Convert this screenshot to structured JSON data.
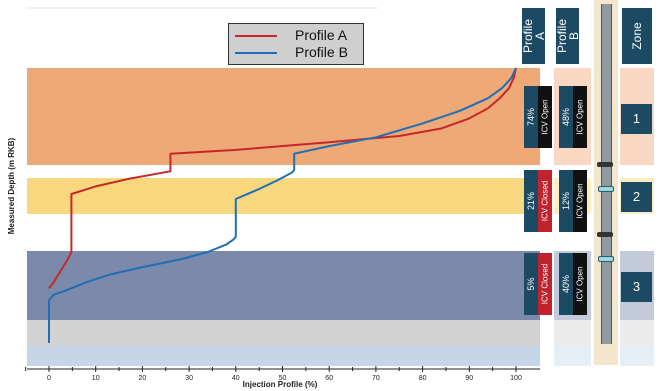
{
  "chart_data": {
    "type": "line",
    "title": "",
    "xlabel": "Injection Profile (%)",
    "ylabel": "Measured Depth (m RKB)",
    "xlim": [
      0,
      100
    ],
    "ylim": [
      100,
      0
    ],
    "grid": false,
    "legend_position": "top-center",
    "x_ticks": [
      "0",
      "10",
      "20",
      "30",
      "40",
      "50",
      "60",
      "70",
      "80",
      "90",
      "100"
    ],
    "series": [
      {
        "name": "Profile A",
        "color": "#c62828",
        "points": [
          [
            0,
            87.5
          ],
          [
            1,
            85
          ],
          [
            2,
            82
          ],
          [
            3,
            79
          ],
          [
            4,
            76
          ],
          [
            4.8,
            73
          ],
          [
            4.8,
            50
          ],
          [
            10,
            47
          ],
          [
            17,
            44
          ],
          [
            23,
            42
          ],
          [
            26,
            41
          ],
          [
            26,
            34
          ],
          [
            40,
            32.5
          ],
          [
            60,
            29.5
          ],
          [
            75,
            27
          ],
          [
            84,
            24
          ],
          [
            90,
            20
          ],
          [
            94,
            16
          ],
          [
            96.5,
            12
          ],
          [
            98.5,
            8
          ],
          [
            99.5,
            4
          ],
          [
            100,
            0
          ]
        ]
      },
      {
        "name": "Profile B",
        "color": "#1e6fb5",
        "points": [
          [
            0,
            92
          ],
          [
            1,
            90
          ],
          [
            4,
            88
          ],
          [
            8,
            85
          ],
          [
            13,
            82
          ],
          [
            20,
            79
          ],
          [
            28,
            76
          ],
          [
            34,
            73
          ],
          [
            38,
            70
          ],
          [
            39.5,
            68
          ],
          [
            40,
            67
          ],
          [
            40,
            52
          ],
          [
            45,
            48
          ],
          [
            49,
            44.5
          ],
          [
            52,
            41.5
          ],
          [
            52.5,
            40.5
          ],
          [
            52.5,
            34
          ],
          [
            60,
            31
          ],
          [
            70,
            27.5
          ],
          [
            80,
            22
          ],
          [
            88,
            17
          ],
          [
            94,
            12
          ],
          [
            97,
            8
          ],
          [
            99,
            4
          ],
          [
            100,
            0
          ]
        ]
      }
    ]
  },
  "legend": {
    "items": [
      {
        "label": "Profile A",
        "color": "#c62828"
      },
      {
        "label": "Profile B",
        "color": "#1e6fb5"
      }
    ]
  },
  "zones": [
    {
      "number": "1",
      "profile_a_pct": "74%",
      "profile_a_icv": "ICV Open",
      "profile_b_pct": "48%",
      "profile_b_icv": "ICV Open",
      "color": "#efa977"
    },
    {
      "number": "2",
      "profile_a_pct": "21%",
      "profile_a_icv": "ICV Closed",
      "profile_b_pct": "12%",
      "profile_b_icv": "ICV Open",
      "color": "#f9d77f"
    },
    {
      "number": "3",
      "profile_a_pct": "5%",
      "profile_a_icv": "ICV Closed",
      "profile_b_pct": "40%",
      "profile_b_icv": "ICV Open",
      "color": "#7b89ab"
    }
  ],
  "columns": {
    "profile_a": "Profile\nA",
    "profile_b": "Profile\nB",
    "zone": "Zone"
  },
  "icv_colors": {
    "open": "#111111",
    "closed": "#c0232d"
  },
  "band_colors": {
    "gap": "#ffffff",
    "lower_grey": "#d3d3d3",
    "lower_blue": "#c6d6e8"
  }
}
